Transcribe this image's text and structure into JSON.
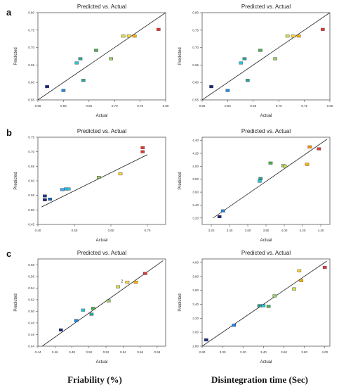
{
  "panel_labels": [
    "a",
    "b",
    "c"
  ],
  "column_labels": [
    "Friability (%)",
    "Disintegration time (Sec)"
  ],
  "chart_data": [
    {
      "type": "scatter",
      "title": "Predicted vs. Actual",
      "xlabel": "Actual",
      "ylabel": "Predicted",
      "xlim": [
        0.55,
        0.8
      ],
      "ylim": [
        0.55,
        0.8
      ],
      "xticks": [
        "0.55",
        "0.60",
        "0.65",
        "0.70",
        "0.75",
        "0.80"
      ],
      "yticks": [
        "0.55",
        "0.60",
        "0.65",
        "0.70",
        "0.75",
        "0.80"
      ],
      "grid": false,
      "points": [
        {
          "x": 0.568,
          "y": 0.588,
          "color": "#1a237e"
        },
        {
          "x": 0.6,
          "y": 0.577,
          "color": "#1e88e5"
        },
        {
          "x": 0.626,
          "y": 0.656,
          "color": "#26c6da"
        },
        {
          "x": 0.633,
          "y": 0.668,
          "color": "#26a69a"
        },
        {
          "x": 0.639,
          "y": 0.606,
          "color": "#26a69a"
        },
        {
          "x": 0.664,
          "y": 0.692,
          "color": "#4caf50"
        },
        {
          "x": 0.693,
          "y": 0.668,
          "color": "#9ccc65"
        },
        {
          "x": 0.717,
          "y": 0.733,
          "color": "#d4e157"
        },
        {
          "x": 0.728,
          "y": 0.733,
          "color": "#fdd835"
        },
        {
          "x": 0.739,
          "y": 0.733,
          "color": "#ffb300"
        },
        {
          "x": 0.786,
          "y": 0.752,
          "color": "#e53935"
        }
      ],
      "fit_line": [
        [
          0.55,
          0.55
        ],
        [
          0.8,
          0.8
        ]
      ]
    },
    {
      "type": "scatter",
      "title": "Predicted vs. Actual",
      "xlabel": "Actual",
      "ylabel": "Predicted",
      "xlim": [
        0.55,
        0.8
      ],
      "ylim": [
        0.55,
        0.8
      ],
      "xticks": [
        "0.55",
        "0.60",
        "0.65",
        "0.70",
        "0.75",
        "0.80"
      ],
      "yticks": [
        "0.55",
        "0.60",
        "0.65",
        "0.70",
        "0.75",
        "0.80"
      ],
      "grid": false,
      "points": [
        {
          "x": 0.568,
          "y": 0.588,
          "color": "#1a237e"
        },
        {
          "x": 0.6,
          "y": 0.577,
          "color": "#1e88e5"
        },
        {
          "x": 0.626,
          "y": 0.656,
          "color": "#26c6da"
        },
        {
          "x": 0.633,
          "y": 0.668,
          "color": "#26a69a"
        },
        {
          "x": 0.639,
          "y": 0.606,
          "color": "#26a69a"
        },
        {
          "x": 0.664,
          "y": 0.692,
          "color": "#4caf50"
        },
        {
          "x": 0.693,
          "y": 0.668,
          "color": "#9ccc65"
        },
        {
          "x": 0.717,
          "y": 0.733,
          "color": "#d4e157"
        },
        {
          "x": 0.728,
          "y": 0.733,
          "color": "#fdd835"
        },
        {
          "x": 0.739,
          "y": 0.733,
          "color": "#ffb300"
        },
        {
          "x": 0.786,
          "y": 0.752,
          "color": "#e53935"
        }
      ],
      "fit_line": [
        [
          0.55,
          0.55
        ],
        [
          0.8,
          0.8
        ]
      ]
    },
    {
      "type": "scatter",
      "title": "Predicted vs. Actual",
      "xlabel": "Actual",
      "ylabel": "Predicted",
      "xlim": [
        0.4,
        0.75
      ],
      "ylim": [
        0.45,
        0.75
      ],
      "xticks": [
        "0.40",
        "0.50",
        "0.60",
        "0.70"
      ],
      "yticks": [
        "0.45",
        "0.50",
        "0.55",
        "0.60",
        "0.65",
        "0.70",
        "0.75"
      ],
      "grid": false,
      "points": [
        {
          "x": 0.419,
          "y": 0.535,
          "color": "#1a237e"
        },
        {
          "x": 0.419,
          "y": 0.548,
          "color": "#1e3a8a"
        },
        {
          "x": 0.433,
          "y": 0.537,
          "color": "#1565c0"
        },
        {
          "x": 0.467,
          "y": 0.57,
          "color": "#42a5f5"
        },
        {
          "x": 0.477,
          "y": 0.572,
          "color": "#29b6f6"
        },
        {
          "x": 0.484,
          "y": 0.572,
          "color": "#26c6da"
        },
        {
          "x": 0.567,
          "y": 0.612,
          "color": "#9ccc65"
        },
        {
          "x": 0.626,
          "y": 0.624,
          "color": "#fdd835"
        },
        {
          "x": 0.687,
          "y": 0.7,
          "color": "#e53935"
        },
        {
          "x": 0.687,
          "y": 0.714,
          "color": "#e53935"
        }
      ],
      "fit_line": [
        [
          0.41,
          0.51
        ],
        [
          0.7,
          0.69
        ]
      ]
    },
    {
      "type": "scatter",
      "title": "Predicted vs. Actual",
      "xlabel": "Actual",
      "ylabel": "Predicted",
      "xlim": [
        3.1,
        4.5
      ],
      "ylim": [
        3.1,
        4.45
      ],
      "xticks": [
        "3.20",
        "3.40",
        "3.60",
        "3.80",
        "4.00",
        "4.20",
        "4.40"
      ],
      "yticks": [
        "3.20",
        "3.40",
        "3.60",
        "3.80",
        "4.00",
        "4.20",
        "4.40"
      ],
      "grid": false,
      "points": [
        {
          "x": 3.29,
          "y": 3.22,
          "color": "#1a237e"
        },
        {
          "x": 3.33,
          "y": 3.31,
          "color": "#1e88e5"
        },
        {
          "x": 3.73,
          "y": 3.77,
          "color": "#26c6da"
        },
        {
          "x": 3.74,
          "y": 3.81,
          "color": "#26a69a"
        },
        {
          "x": 3.85,
          "y": 4.05,
          "color": "#4caf50"
        },
        {
          "x": 3.99,
          "y": 4.01,
          "color": "#9ccc65"
        },
        {
          "x": 4.01,
          "y": 4.0,
          "color": "#d4e157"
        },
        {
          "x": 4.25,
          "y": 4.03,
          "color": "#ffb300"
        },
        {
          "x": 4.28,
          "y": 4.3,
          "color": "#ff8f00"
        },
        {
          "x": 4.38,
          "y": 4.27,
          "color": "#e53935"
        }
      ],
      "fit_line": [
        [
          3.22,
          3.2
        ],
        [
          4.47,
          4.42
        ]
      ]
    },
    {
      "type": "scatter",
      "title": "Predicted vs. Actual",
      "xlabel": "Actual",
      "ylabel": "Predicted",
      "xlim": [
        0.44,
        0.59
      ],
      "ylim": [
        0.44,
        0.59
      ],
      "xticks": [
        "0.44",
        "0.46",
        "0.48",
        "0.50",
        "0.52",
        "0.54",
        "0.56",
        "0.58"
      ],
      "yticks": [
        "0.44",
        "0.46",
        "0.48",
        "0.50",
        "0.52",
        "0.54",
        "0.56",
        "0.58"
      ],
      "grid": false,
      "points": [
        {
          "x": 0.467,
          "y": 0.468,
          "color": "#1a237e"
        },
        {
          "x": 0.485,
          "y": 0.484,
          "color": "#1e88e5"
        },
        {
          "x": 0.493,
          "y": 0.502,
          "color": "#26c6da"
        },
        {
          "x": 0.503,
          "y": 0.495,
          "color": "#26a69a"
        },
        {
          "x": 0.505,
          "y": 0.505,
          "color": "#4caf50"
        },
        {
          "x": 0.523,
          "y": 0.518,
          "color": "#9ccc65"
        },
        {
          "x": 0.534,
          "y": 0.542,
          "color": "#d4e157"
        },
        {
          "x": 0.545,
          "y": 0.55,
          "color": "#fdd835"
        },
        {
          "x": 0.555,
          "y": 0.55,
          "color": "#ffb300"
        },
        {
          "x": 0.566,
          "y": 0.565,
          "color": "#e53935"
        }
      ],
      "annotation": "2",
      "annotation_at": [
        0.54,
        0.551
      ],
      "fit_line": [
        [
          0.445,
          0.44
        ],
        [
          0.587,
          0.587
        ]
      ]
    },
    {
      "type": "scatter",
      "title": "Predicted vs. Actual",
      "xlabel": "Actual",
      "ylabel": "Predicted",
      "xlim": [
        2.8,
        4.05
      ],
      "ylim": [
        2.8,
        4.05
      ],
      "xticks": [
        "2.80",
        "3.00",
        "3.20",
        "3.40",
        "3.60",
        "3.80",
        "4.00"
      ],
      "yticks": [
        "2.80",
        "3.00",
        "3.20",
        "3.40",
        "3.60",
        "3.80",
        "4.00"
      ],
      "grid": false,
      "points": [
        {
          "x": 2.84,
          "y": 2.89,
          "color": "#1a237e"
        },
        {
          "x": 3.11,
          "y": 3.1,
          "color": "#1e88e5"
        },
        {
          "x": 3.36,
          "y": 3.38,
          "color": "#26a69a"
        },
        {
          "x": 3.38,
          "y": 3.38,
          "color": "#26a69a"
        },
        {
          "x": 3.4,
          "y": 3.38,
          "color": "#26c6da"
        },
        {
          "x": 3.45,
          "y": 3.37,
          "color": "#4caf50"
        },
        {
          "x": 3.51,
          "y": 3.52,
          "color": "#9ccc65"
        },
        {
          "x": 3.7,
          "y": 3.62,
          "color": "#d4e157"
        },
        {
          "x": 3.75,
          "y": 3.88,
          "color": "#fdd835"
        },
        {
          "x": 3.77,
          "y": 3.74,
          "color": "#ffb300"
        },
        {
          "x": 4.0,
          "y": 3.93,
          "color": "#e53935"
        }
      ],
      "fit_line": [
        [
          2.8,
          2.8
        ],
        [
          4.02,
          4.02
        ]
      ]
    }
  ]
}
